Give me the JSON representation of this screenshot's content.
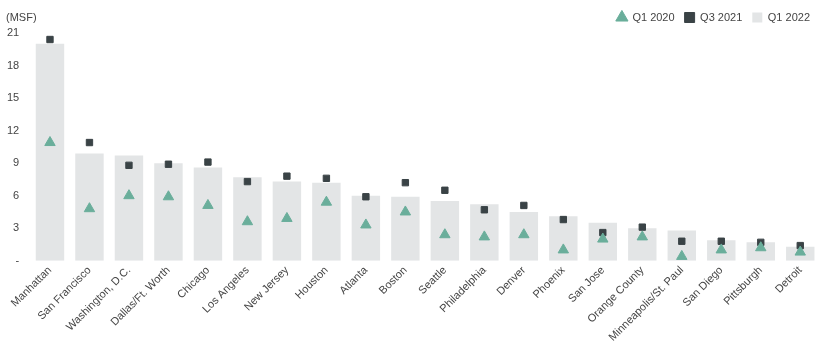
{
  "chart_data": {
    "type": "bar",
    "y_label": "(MSF)",
    "categories": [
      "Manhattan",
      "San Francisco",
      "Washington, D.C.",
      "Dallas/Ft. Worth",
      "Chicago",
      "Los Angeles",
      "New Jersey",
      "Houston",
      "Atlanta",
      "Boston",
      "Seattle",
      "Philadelphia",
      "Denver",
      "Phoenix",
      "San Jose",
      "Orange County",
      "Minneapolis/St. Paul",
      "San Diego",
      "Pittsburgh",
      "Detroit"
    ],
    "series": [
      {
        "name": "Q1 2022",
        "type": "bar",
        "color": "#e3e5e6",
        "values": [
          20.0,
          9.9,
          9.7,
          9.0,
          8.6,
          7.7,
          7.3,
          7.2,
          6.0,
          5.9,
          5.5,
          5.2,
          4.5,
          4.1,
          3.5,
          3.0,
          2.8,
          1.9,
          1.7,
          1.3
        ]
      },
      {
        "name": "Q1 2020",
        "type": "scatter",
        "marker": "triangle",
        "color": "#6aae9b",
        "values": [
          10.9,
          4.8,
          6.0,
          5.9,
          5.1,
          3.6,
          3.9,
          5.4,
          3.3,
          4.5,
          2.4,
          2.2,
          2.4,
          1.0,
          2.0,
          2.2,
          0.4,
          1.0,
          1.2,
          0.8
        ]
      },
      {
        "name": "Q3 2021",
        "type": "scatter",
        "marker": "square",
        "color": "#3a4346",
        "values": [
          20.4,
          10.9,
          8.8,
          8.9,
          9.1,
          7.3,
          7.8,
          7.6,
          5.9,
          7.2,
          6.5,
          4.7,
          5.1,
          3.8,
          2.6,
          3.1,
          1.8,
          1.8,
          1.7,
          1.4
        ]
      }
    ],
    "ylim": [
      0,
      21
    ],
    "yticks": [
      {
        "value": 0,
        "label": "-"
      },
      3,
      6,
      9,
      12,
      15,
      18,
      21
    ],
    "grid": false,
    "legend": "top-right"
  }
}
